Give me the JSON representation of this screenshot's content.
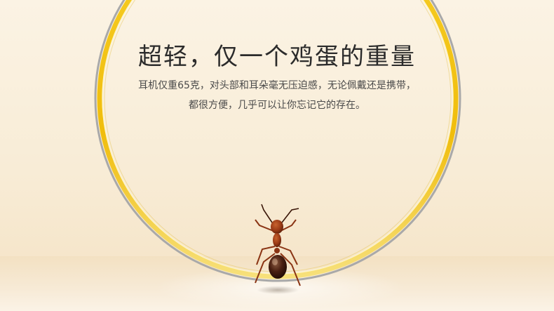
{
  "headline": "超轻，仅一个鸡蛋的重量",
  "description": {
    "line1": "耳机仅重65克，对头部和耳朵毫无压迫感，无论佩戴还是携带，",
    "line2": "都很方便，几乎可以让你忘记它的存在。"
  },
  "colors": {
    "ring_gold": "#f2c312",
    "ring_silver": "#9a9a9a",
    "ant_body": "#9a3a16"
  }
}
